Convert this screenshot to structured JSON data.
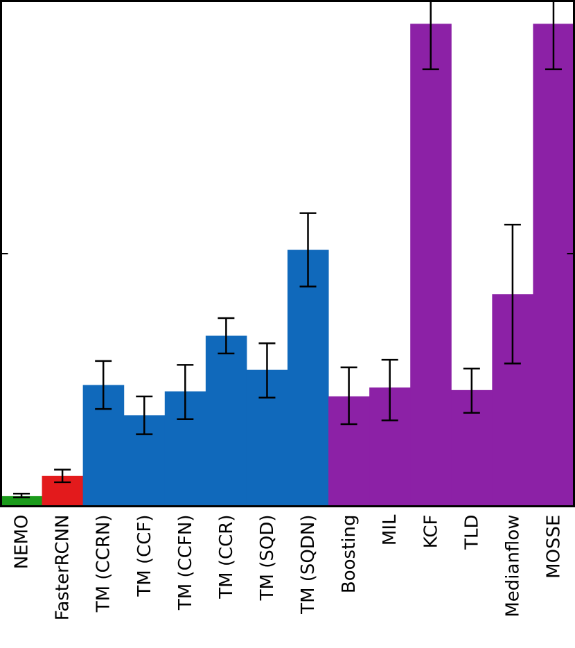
{
  "chart_data": {
    "type": "bar",
    "categories": [
      "NEMO",
      "FasterRCNN",
      "TM (CCRN)",
      "TM (CCF)",
      "TM (CCFN)",
      "TM (CCR)",
      "TM (SQD)",
      "TM (SQDN)",
      "Boosting",
      "MIL",
      "KCF",
      "TLD",
      "Medianflow",
      "MOSSE"
    ],
    "values": [
      0.04,
      0.12,
      0.48,
      0.36,
      0.455,
      0.675,
      0.54,
      1.015,
      0.435,
      0.47,
      1.91,
      0.46,
      0.84,
      1.91
    ],
    "error_low": [
      0.035,
      0.095,
      0.385,
      0.285,
      0.345,
      0.605,
      0.43,
      0.87,
      0.325,
      0.34,
      1.73,
      0.37,
      0.565,
      1.73
    ],
    "error_high": [
      0.05,
      0.145,
      0.575,
      0.435,
      0.56,
      0.745,
      0.645,
      1.16,
      0.55,
      0.58,
      2.0,
      0.545,
      1.115,
      2.0
    ],
    "colors": [
      "#1a9a1a",
      "#e31a1c",
      "#1069bb",
      "#1069bb",
      "#1069bb",
      "#1069bb",
      "#1069bb",
      "#1069bb",
      "#8c21a6",
      "#8c21a6",
      "#8c21a6",
      "#8c21a6",
      "#8c21a6",
      "#8c21a6"
    ],
    "ylim": [
      0,
      2.0
    ],
    "yticks": [
      1.0
    ],
    "grid": false,
    "title": "",
    "xlabel": "",
    "ylabel": ""
  }
}
